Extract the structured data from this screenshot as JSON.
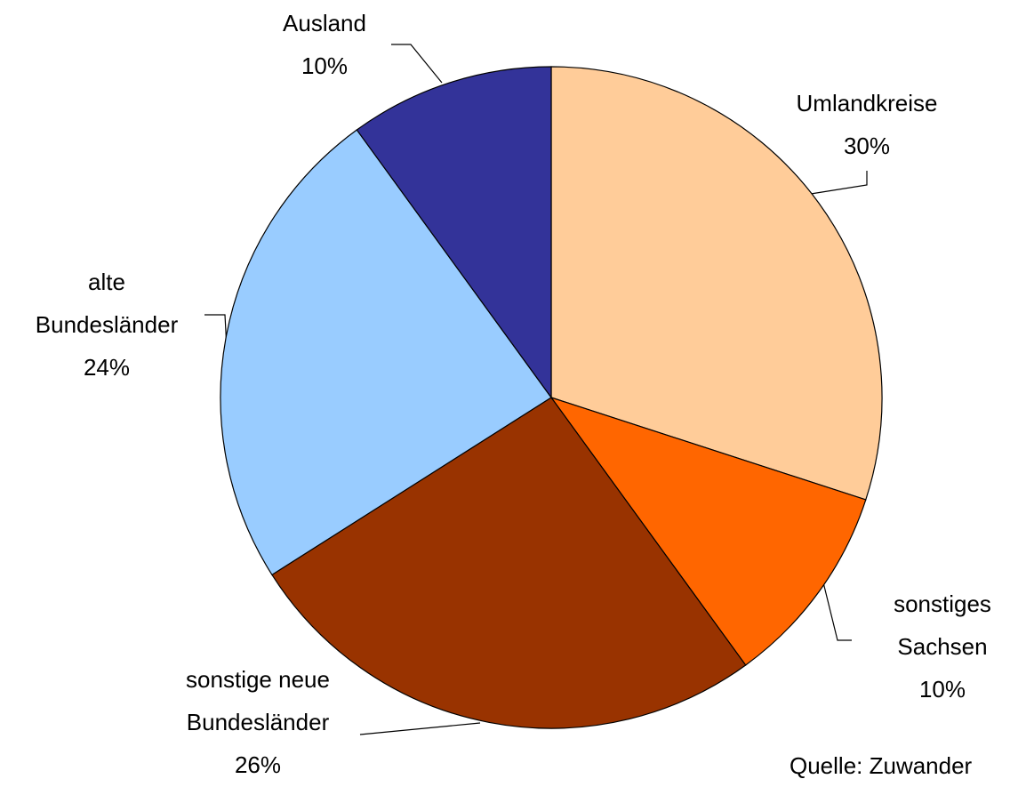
{
  "chart_data": {
    "type": "pie",
    "categories": [
      "Umlandkreise",
      "sonstiges\nSachsen",
      "sonstige neue\nBundesländer",
      "alte\nBundesländer",
      "Ausland"
    ],
    "values": [
      30,
      10,
      26,
      24,
      10
    ],
    "value_labels": [
      "30%",
      "10%",
      "26%",
      "24%",
      "10%"
    ],
    "colors": [
      "#ffcc99",
      "#ff6600",
      "#993300",
      "#99ccff",
      "#333399"
    ],
    "source": "Quelle: Zuwander"
  }
}
